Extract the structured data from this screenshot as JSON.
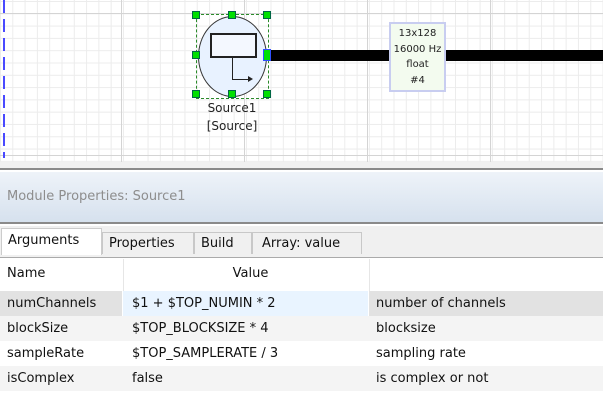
{
  "canvas": {
    "module": {
      "name": "Source1",
      "type": "[Source]"
    },
    "wire_info": {
      "dims": "13x128",
      "rate": "16000 Hz",
      "dtype": "float",
      "id": "#4"
    }
  },
  "panel": {
    "title": "Module Properties: Source1",
    "tabs": [
      {
        "label": "Arguments",
        "active": true
      },
      {
        "label": "Properties"
      },
      {
        "label": "Build"
      },
      {
        "label": "Array: value"
      }
    ],
    "columns": {
      "name": "Name",
      "value": "Value",
      "description": ""
    },
    "rows": [
      {
        "name": "numChannels",
        "value": "$1 + $TOP_NUMIN * 2",
        "description": "number of channels",
        "selected": true
      },
      {
        "name": "blockSize",
        "value": "$TOP_BLOCKSIZE * 4",
        "description": "blocksize"
      },
      {
        "name": "sampleRate",
        "value": "$TOP_SAMPLERATE / 3",
        "description": "sampling rate"
      },
      {
        "name": "isComplex",
        "value": "false",
        "description": "is complex or not"
      }
    ]
  }
}
